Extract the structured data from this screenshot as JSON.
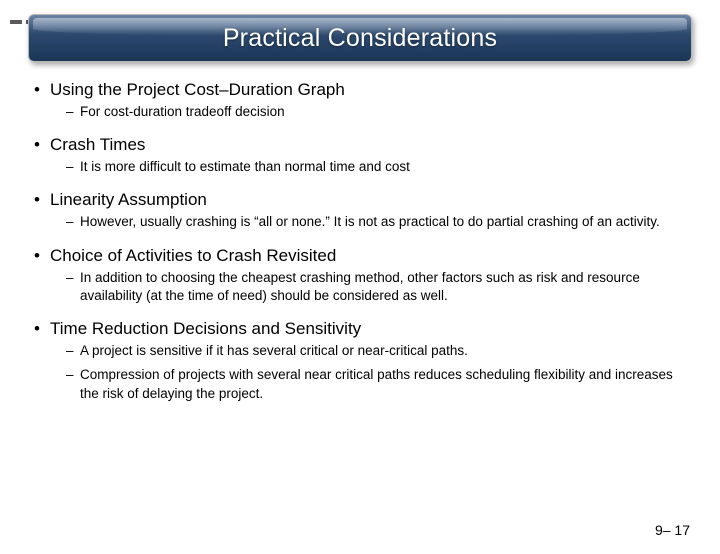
{
  "title": "Practical Considerations",
  "title_bg_gradient": [
    "#6a85a8",
    "#2d4a6f",
    "#1a3556"
  ],
  "title_text_color": "#ffffff",
  "title_fontsize": 25,
  "body_color": "#000000",
  "l1_fontsize": 17,
  "l2_fontsize": 13.5,
  "dash_color": "#5a5a5a",
  "bullets": [
    {
      "text": "Using the Project Cost–Duration Graph",
      "subs": [
        "For cost-duration tradeoff decision"
      ]
    },
    {
      "text": "Crash Times",
      "subs": [
        "It is more difficult to estimate than normal time and cost"
      ]
    },
    {
      "text": "Linearity Assumption",
      "subs": [
        "However, usually crashing is “all or none.”  It is not as practical to do partial crashing of an activity."
      ]
    },
    {
      "text": "Choice of Activities to Crash Revisited",
      "subs": [
        "In addition to choosing the cheapest crashing method, other factors such as risk and resource availability (at the time of need) should be considered as well."
      ]
    },
    {
      "text": "Time Reduction Decisions and Sensitivity",
      "subs": [
        "A project is sensitive if it has several critical or near-critical paths.",
        "Compression of projects with several near critical paths reduces scheduling flexibility and increases the risk of delaying the project."
      ]
    }
  ],
  "footer": "9– 17"
}
